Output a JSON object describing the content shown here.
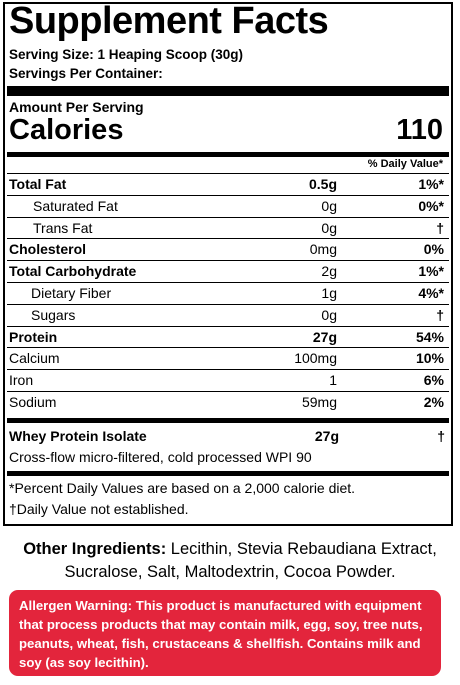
{
  "title": "Supplement Facts",
  "serving_size": "Serving Size: 1 Heaping Scoop (30g)",
  "servings_per_container": "Servings Per Container:",
  "amount_per_serving": "Amount Per Serving",
  "calories_label": "Calories",
  "calories_value": "110",
  "dv_header": "% Daily Value*",
  "nutrients": [
    {
      "name": "Total Fat",
      "amount": "0.5g",
      "dv": "1%*"
    },
    {
      "name": "Saturated Fat",
      "amount": "0g",
      "dv": "0%*"
    },
    {
      "name": "Trans Fat",
      "amount": "0g",
      "dv": "†"
    },
    {
      "name": "Cholesterol",
      "amount": "0mg",
      "dv": "0%"
    },
    {
      "name": "Total Carbohydrate",
      "amount": "2g",
      "dv": "1%*"
    },
    {
      "name": "Dietary Fiber",
      "amount": "1g",
      "dv": "4%*"
    },
    {
      "name": "Sugars",
      "amount": "0g",
      "dv": "†"
    },
    {
      "name": "Protein",
      "amount": "27g",
      "dv": "54%"
    },
    {
      "name": "Calcium",
      "amount": "100mg",
      "dv": "10%"
    },
    {
      "name": "Iron",
      "amount": "1",
      "dv": "6%"
    },
    {
      "name": "Sodium",
      "amount": "59mg",
      "dv": "2%"
    }
  ],
  "whey": {
    "name": "Whey Protein Isolate",
    "amount": "27g",
    "dv": "†"
  },
  "whey_description": "Cross-flow micro-filtered, cold processed WPI 90",
  "footnote_1": "*Percent Daily Values are based on a 2,000 calorie diet.",
  "footnote_2": "†Daily Value not established.",
  "other_ingredients_label": "Other Ingredients:",
  "other_ingredients_text": "Lecithin, Stevia Rebaudiana Extract, Sucralose, Salt, Maltodextrin, Cocoa Powder.",
  "allergen_warning": "Allergen Warning: This product is manufactured with equipment that process products that may contain milk, egg, soy, tree nuts, peanuts, wheat, fish, crustaceans & shellfish. Contains milk and soy (as soy lecithin).",
  "colors": {
    "allergen_background": "#e3253c",
    "allergen_text": "#ffffff"
  }
}
